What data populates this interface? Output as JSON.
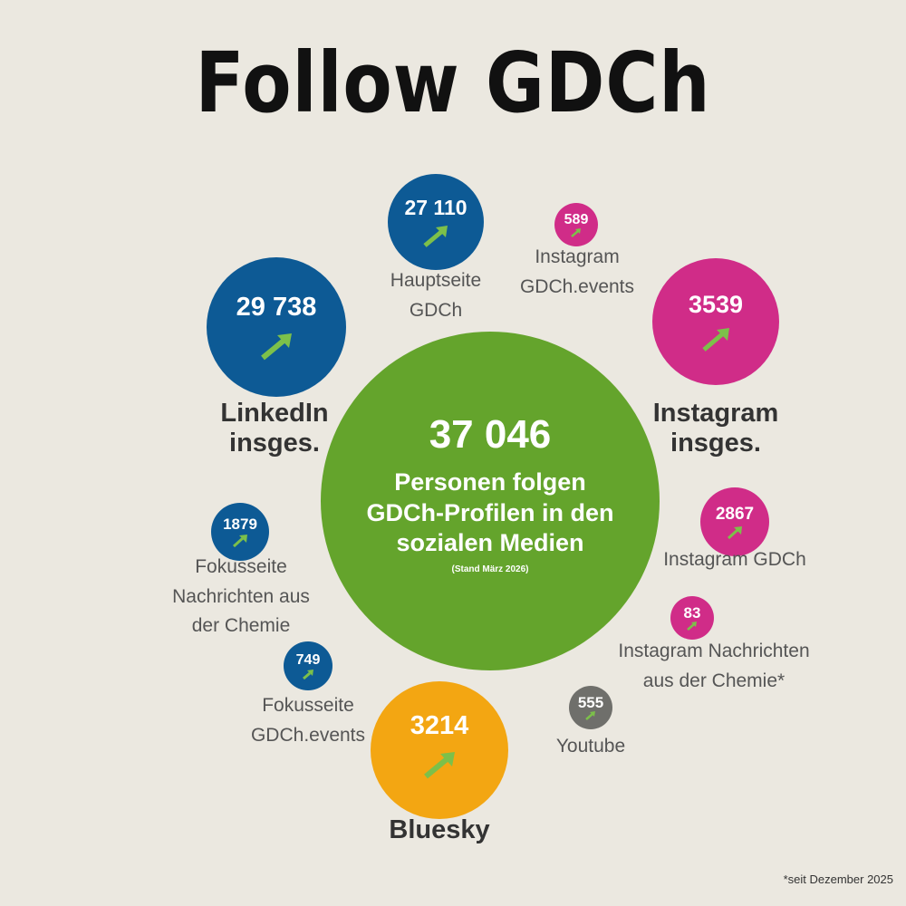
{
  "title": "Follow GDCh",
  "center": {
    "total": "37 046",
    "line1": "Personen folgen",
    "line2": "GDCh-Profilen in den",
    "line3": "sozialen Medien",
    "note": "(Stand März 2026)",
    "color": "#64a42c"
  },
  "colors": {
    "linkedin": "#0d5a95",
    "instagram": "#d02c88",
    "bluesky": "#f3a612",
    "youtube": "#6f6f6b",
    "arrow": "#7cc04a",
    "background": "#ebe8e0"
  },
  "profiles": {
    "linkedin_total": {
      "value": "29 738",
      "label1": "LinkedIn",
      "label2": "insges."
    },
    "linkedin_main": {
      "value": "27 110",
      "label1": "Hauptseite",
      "label2": "GDCh"
    },
    "linkedin_news": {
      "value": "1879",
      "label1": "Fokusseite",
      "label2": "Nachrichten aus",
      "label3": "der Chemie"
    },
    "linkedin_events": {
      "value": "749",
      "label1": "Fokusseite",
      "label2": "GDCh.events"
    },
    "instagram_events": {
      "value": "589",
      "label1": "Instagram",
      "label2": "GDCh.events"
    },
    "instagram_total": {
      "value": "3539",
      "label1": "Instagram",
      "label2": "insges."
    },
    "instagram_gdch": {
      "value": "2867",
      "label1": "Instagram GDCh"
    },
    "instagram_news": {
      "value": "83",
      "label1": "Instagram Nachrichten",
      "label2": "aus der Chemie*"
    },
    "youtube": {
      "value": "555",
      "label1": "Youtube"
    },
    "bluesky": {
      "value": "3214",
      "label1": "Bluesky"
    }
  },
  "footnote": "*seit Dezember 2025"
}
